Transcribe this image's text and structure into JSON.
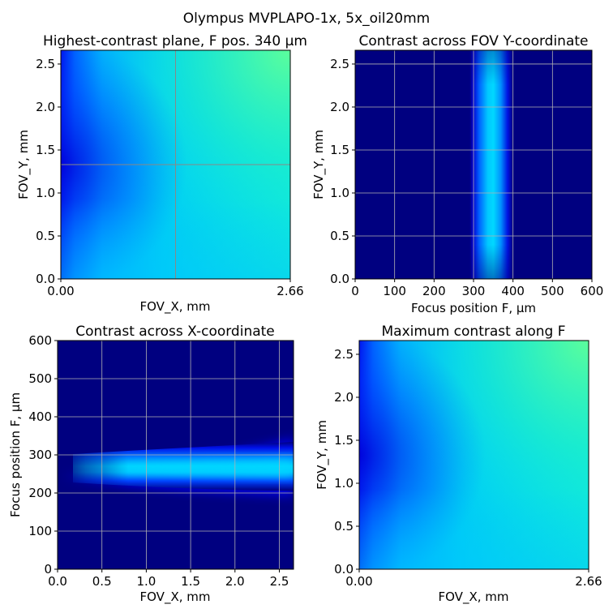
{
  "suptitle": "Olympus MVPLAPO-1x, 5x_oil20mm",
  "chart_data": [
    {
      "type": "heatmap",
      "title": "Highest-contrast plane, F pos. 340 µm",
      "xlabel": "FOV_X, mm",
      "ylabel": "FOV_Y, mm",
      "xlim": [
        0,
        2.66
      ],
      "ylim": [
        0,
        2.66
      ],
      "xticks": [
        "0.00",
        "2.66"
      ],
      "yticks": [
        "0.0",
        "0.5",
        "1.0",
        "1.5",
        "2.0",
        "2.5"
      ],
      "ytick_values": [
        0,
        0.5,
        1.0,
        1.5,
        2.0,
        2.5
      ],
      "crosshair": {
        "x": 1.33,
        "y": 1.33
      },
      "grid": false,
      "colormap": "jet"
    },
    {
      "type": "heatmap",
      "title": "Contrast across FOV Y-coordinate",
      "xlabel": "Focus position F, µm",
      "ylabel": "FOV_Y, mm",
      "xlim": [
        0,
        600
      ],
      "ylim": [
        0,
        2.66
      ],
      "xticks": [
        "0",
        "100",
        "200",
        "300",
        "400",
        "500",
        "600"
      ],
      "xtick_values": [
        0,
        100,
        200,
        300,
        400,
        500,
        600
      ],
      "yticks": [
        "0.0",
        "0.5",
        "1.0",
        "1.5",
        "2.0",
        "2.5"
      ],
      "ytick_values": [
        0,
        0.5,
        1.0,
        1.5,
        2.0,
        2.5
      ],
      "peak_focus": 340,
      "band_range": [
        290,
        400
      ],
      "grid": true,
      "colormap": "jet"
    },
    {
      "type": "heatmap",
      "title": "Contrast across X-coordinate",
      "xlabel": "FOV_X, mm",
      "ylabel": "Focus position F, µm",
      "xlim": [
        0,
        2.66
      ],
      "ylim": [
        0,
        600
      ],
      "xticks": [
        "0.0",
        "0.5",
        "1.0",
        "1.5",
        "2.0",
        "2.5"
      ],
      "xtick_values": [
        0,
        0.5,
        1.0,
        1.5,
        2.0,
        2.5
      ],
      "yticks": [
        "0",
        "100",
        "200",
        "300",
        "400",
        "500",
        "600"
      ],
      "ytick_values": [
        0,
        100,
        200,
        300,
        400,
        500,
        600
      ],
      "peak_focus_range": [
        255,
        265
      ],
      "band_range": [
        200,
        340
      ],
      "grid": true,
      "colormap": "jet"
    },
    {
      "type": "heatmap",
      "title": "Maximum contrast along F",
      "xlabel": "FOV_X, mm",
      "ylabel": "FOV_Y, mm",
      "xlim": [
        0,
        2.66
      ],
      "ylim": [
        0,
        2.66
      ],
      "xticks": [
        "0.00",
        "2.66"
      ],
      "yticks": [
        "0.0",
        "0.5",
        "1.0",
        "1.5",
        "2.0",
        "2.5"
      ],
      "ytick_values": [
        0,
        0.5,
        1.0,
        1.5,
        2.0,
        2.5
      ],
      "grid": false,
      "colormap": "jet"
    }
  ]
}
